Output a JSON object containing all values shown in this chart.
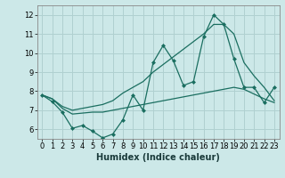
{
  "xlabel": "Humidex (Indice chaleur)",
  "background_color": "#cce8e8",
  "grid_color": "#b0d0d0",
  "line_color": "#1a6e60",
  "xlim": [
    -0.5,
    23.5
  ],
  "ylim": [
    5.5,
    12.5
  ],
  "yticks": [
    6,
    7,
    8,
    9,
    10,
    11,
    12
  ],
  "xticks": [
    0,
    1,
    2,
    3,
    4,
    5,
    6,
    7,
    8,
    9,
    10,
    11,
    12,
    13,
    14,
    15,
    16,
    17,
    18,
    19,
    20,
    21,
    22,
    23
  ],
  "line1_x": [
    0,
    1,
    2,
    3,
    4,
    5,
    6,
    7,
    8,
    9,
    10,
    11,
    12,
    13,
    14,
    15,
    16,
    17,
    18,
    19,
    20,
    21,
    22,
    23
  ],
  "line1_y": [
    7.8,
    7.45,
    6.9,
    6.05,
    6.2,
    5.9,
    5.55,
    5.75,
    6.5,
    7.8,
    7.0,
    9.5,
    10.4,
    9.6,
    8.3,
    8.5,
    10.85,
    12.0,
    11.5,
    9.7,
    8.2,
    8.2,
    7.4,
    8.2
  ],
  "line2_x": [
    0,
    1,
    2,
    3,
    4,
    5,
    6,
    7,
    8,
    9,
    10,
    11,
    12,
    13,
    14,
    15,
    16,
    17,
    18,
    19,
    20,
    21,
    22,
    23
  ],
  "line2_y": [
    7.8,
    7.6,
    7.2,
    7.0,
    7.1,
    7.2,
    7.3,
    7.5,
    7.9,
    8.2,
    8.5,
    9.0,
    9.4,
    9.8,
    10.2,
    10.6,
    11.0,
    11.5,
    11.5,
    11.0,
    9.5,
    8.8,
    8.2,
    7.5
  ],
  "line3_x": [
    0,
    1,
    2,
    3,
    4,
    5,
    6,
    7,
    8,
    9,
    10,
    11,
    12,
    13,
    14,
    15,
    16,
    17,
    18,
    19,
    20,
    21,
    22,
    23
  ],
  "line3_y": [
    7.8,
    7.6,
    7.1,
    6.8,
    6.85,
    6.9,
    6.9,
    7.0,
    7.1,
    7.2,
    7.3,
    7.4,
    7.5,
    7.6,
    7.7,
    7.8,
    7.9,
    8.0,
    8.1,
    8.2,
    8.1,
    7.85,
    7.6,
    7.4
  ]
}
